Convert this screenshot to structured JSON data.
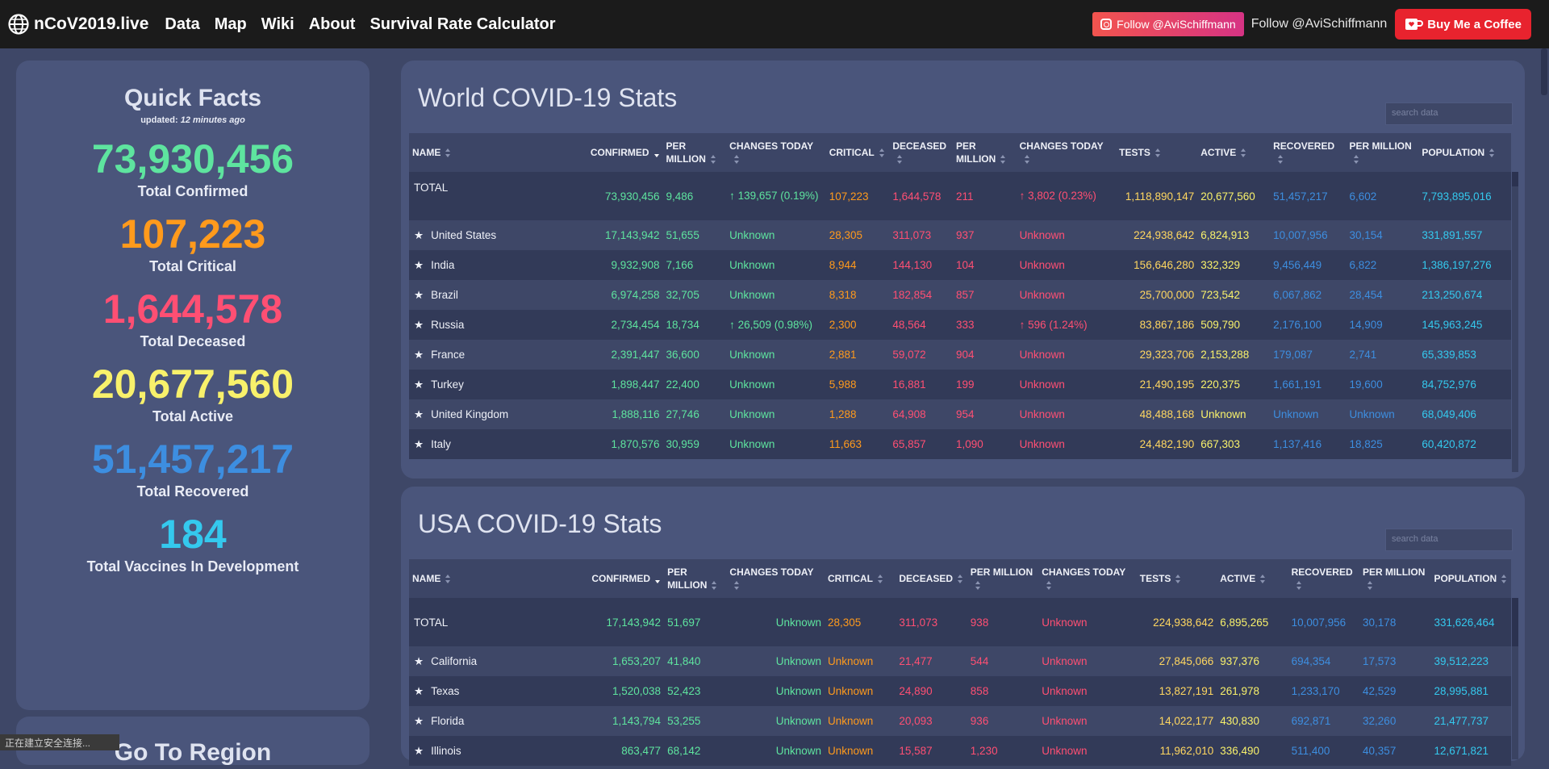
{
  "nav": {
    "brand": "nCoV2019.live",
    "links": [
      "Data",
      "Map",
      "Wiki",
      "About",
      "Survival Rate Calculator"
    ],
    "instagram_label": "Follow @AviSchiffmann",
    "follow_text": "Follow @AviSchiffmann",
    "coffee_label": "Buy Me a Coffee"
  },
  "facts": {
    "title": "Quick Facts",
    "updated_prefix": "updated:",
    "updated_time": "12 minutes ago",
    "items": [
      {
        "value": "73,930,456",
        "label": "Total Confirmed",
        "color": "#5ee49f"
      },
      {
        "value": "107,223",
        "label": "Total Critical",
        "color": "#ff9a1c"
      },
      {
        "value": "1,644,578",
        "label": "Total Deceased",
        "color": "#ff4f73"
      },
      {
        "value": "20,677,560",
        "label": "Total Active",
        "color": "#f8f16b"
      },
      {
        "value": "51,457,217",
        "label": "Total Recovered",
        "color": "#3d8ee0"
      },
      {
        "value": "184",
        "label": "Total Vaccines In Development",
        "color": "#34c9ee"
      }
    ]
  },
  "go_to_region_title": "Go To Region",
  "status_text": "正在建立安全连接...",
  "world": {
    "title": "World COVID-19 Stats",
    "search_placeholder": "search data",
    "headers": [
      "NAME",
      "CONFIRMED",
      "PER MILLION",
      "CHANGES TODAY",
      "CRITICAL",
      "DECEASED",
      "PER MILLION",
      "CHANGES TODAY",
      "TESTS",
      "ACTIVE",
      "RECOVERED",
      "PER MILLION",
      "POPULATION"
    ],
    "total": {
      "name": "TOTAL",
      "confirmed": "73,930,456",
      "per_million": "9,486",
      "changes": "↑ 139,657 (0.19%)",
      "critical": "107,223",
      "deceased": "1,644,578",
      "death_per_million": "211",
      "death_changes": "↑ 3,802 (0.23%)",
      "tests": "1,118,890,147",
      "active": "20,677,560",
      "recovered": "51,457,217",
      "rec_per_million": "6,602",
      "population": "7,793,895,016"
    },
    "rows": [
      {
        "name": "United States",
        "confirmed": "17,143,942",
        "per_million": "51,655",
        "changes": "Unknown",
        "critical": "28,305",
        "deceased": "311,073",
        "death_per_million": "937",
        "death_changes": "Unknown",
        "tests": "224,938,642",
        "active": "6,824,913",
        "recovered": "10,007,956",
        "rec_per_million": "30,154",
        "population": "331,891,557"
      },
      {
        "name": "India",
        "confirmed": "9,932,908",
        "per_million": "7,166",
        "changes": "Unknown",
        "critical": "8,944",
        "deceased": "144,130",
        "death_per_million": "104",
        "death_changes": "Unknown",
        "tests": "156,646,280",
        "active": "332,329",
        "recovered": "9,456,449",
        "rec_per_million": "6,822",
        "population": "1,386,197,276"
      },
      {
        "name": "Brazil",
        "confirmed": "6,974,258",
        "per_million": "32,705",
        "changes": "Unknown",
        "critical": "8,318",
        "deceased": "182,854",
        "death_per_million": "857",
        "death_changes": "Unknown",
        "tests": "25,700,000",
        "active": "723,542",
        "recovered": "6,067,862",
        "rec_per_million": "28,454",
        "population": "213,250,674"
      },
      {
        "name": "Russia",
        "confirmed": "2,734,454",
        "per_million": "18,734",
        "changes": "↑ 26,509 (0.98%)",
        "critical": "2,300",
        "deceased": "48,564",
        "death_per_million": "333",
        "death_changes": "↑ 596 (1.24%)",
        "tests": "83,867,186",
        "active": "509,790",
        "recovered": "2,176,100",
        "rec_per_million": "14,909",
        "population": "145,963,245"
      },
      {
        "name": "France",
        "confirmed": "2,391,447",
        "per_million": "36,600",
        "changes": "Unknown",
        "critical": "2,881",
        "deceased": "59,072",
        "death_per_million": "904",
        "death_changes": "Unknown",
        "tests": "29,323,706",
        "active": "2,153,288",
        "recovered": "179,087",
        "rec_per_million": "2,741",
        "population": "65,339,853"
      },
      {
        "name": "Turkey",
        "confirmed": "1,898,447",
        "per_million": "22,400",
        "changes": "Unknown",
        "critical": "5,988",
        "deceased": "16,881",
        "death_per_million": "199",
        "death_changes": "Unknown",
        "tests": "21,490,195",
        "active": "220,375",
        "recovered": "1,661,191",
        "rec_per_million": "19,600",
        "population": "84,752,976"
      },
      {
        "name": "United Kingdom",
        "confirmed": "1,888,116",
        "per_million": "27,746",
        "changes": "Unknown",
        "critical": "1,288",
        "deceased": "64,908",
        "death_per_million": "954",
        "death_changes": "Unknown",
        "tests": "48,488,168",
        "active": "Unknown",
        "recovered": "Unknown",
        "rec_per_million": "Unknown",
        "population": "68,049,406"
      },
      {
        "name": "Italy",
        "confirmed": "1,870,576",
        "per_million": "30,959",
        "changes": "Unknown",
        "critical": "11,663",
        "deceased": "65,857",
        "death_per_million": "1,090",
        "death_changes": "Unknown",
        "tests": "24,482,190",
        "active": "667,303",
        "recovered": "1,137,416",
        "rec_per_million": "18,825",
        "population": "60,420,872"
      }
    ]
  },
  "usa": {
    "title": "USA COVID-19 Stats",
    "search_placeholder": "search data",
    "headers": [
      "NAME",
      "CONFIRMED",
      "PER MILLION",
      "CHANGES TODAY",
      "CRITICAL",
      "DECEASED",
      "PER MILLION",
      "CHANGES TODAY",
      "TESTS",
      "ACTIVE",
      "RECOVERED",
      "PER MILLION",
      "POPULATION"
    ],
    "total": {
      "name": "TOTAL",
      "confirmed": "17,143,942",
      "per_million": "51,697",
      "changes": "Unknown",
      "critical": "28,305",
      "deceased": "311,073",
      "death_per_million": "938",
      "death_changes": "Unknown",
      "tests": "224,938,642",
      "active": "6,895,265",
      "recovered": "10,007,956",
      "rec_per_million": "30,178",
      "population": "331,626,464"
    },
    "rows": [
      {
        "name": "California",
        "confirmed": "1,653,207",
        "per_million": "41,840",
        "changes": "Unknown",
        "critical": "Unknown",
        "deceased": "21,477",
        "death_per_million": "544",
        "death_changes": "Unknown",
        "tests": "27,845,066",
        "active": "937,376",
        "recovered": "694,354",
        "rec_per_million": "17,573",
        "population": "39,512,223"
      },
      {
        "name": "Texas",
        "confirmed": "1,520,038",
        "per_million": "52,423",
        "changes": "Unknown",
        "critical": "Unknown",
        "deceased": "24,890",
        "death_per_million": "858",
        "death_changes": "Unknown",
        "tests": "13,827,191",
        "active": "261,978",
        "recovered": "1,233,170",
        "rec_per_million": "42,529",
        "population": "28,995,881"
      },
      {
        "name": "Florida",
        "confirmed": "1,143,794",
        "per_million": "53,255",
        "changes": "Unknown",
        "critical": "Unknown",
        "deceased": "20,093",
        "death_per_million": "936",
        "death_changes": "Unknown",
        "tests": "14,022,177",
        "active": "430,830",
        "recovered": "692,871",
        "rec_per_million": "32,260",
        "population": "21,477,737"
      },
      {
        "name": "Illinois",
        "confirmed": "863,477",
        "per_million": "68,142",
        "changes": "Unknown",
        "critical": "Unknown",
        "deceased": "15,587",
        "death_per_million": "1,230",
        "death_changes": "Unknown",
        "tests": "11,962,010",
        "active": "336,490",
        "recovered": "511,400",
        "rec_per_million": "40,357",
        "population": "12,671,821"
      }
    ]
  }
}
